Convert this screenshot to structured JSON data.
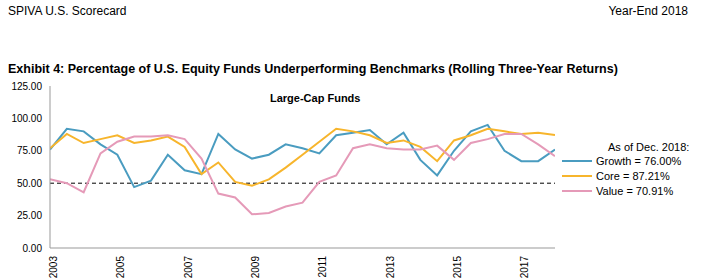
{
  "header": {
    "left": "SPIVA U.S. Scorecard",
    "right": "Year-End 2018"
  },
  "chart_data": {
    "type": "line",
    "title": "Exhibit 4: Percentage of U.S. Equity Funds Underperforming Benchmarks (Rolling Three-Year Returns)",
    "subtitle": "Large-Cap Funds",
    "legend_title": "As of Dec. 2018:",
    "x": [
      2003,
      2003.5,
      2004,
      2004.5,
      2005,
      2005.5,
      2006,
      2006.5,
      2007,
      2007.5,
      2008,
      2008.5,
      2009,
      2009.5,
      2010,
      2010.5,
      2011,
      2011.5,
      2012,
      2012.5,
      2013,
      2013.5,
      2014,
      2014.5,
      2015,
      2015.5,
      2016,
      2016.5,
      2017,
      2017.5,
      2018
    ],
    "xlim": [
      2003,
      2018
    ],
    "xticks": [
      2003,
      2005,
      2007,
      2009,
      2011,
      2013,
      2015,
      2017
    ],
    "ylim": [
      0,
      125
    ],
    "yticks": [
      {
        "value": 0,
        "label": "0.00"
      },
      {
        "value": 25,
        "label": "25.00"
      },
      {
        "value": 50,
        "label": "50.00"
      },
      {
        "value": 75,
        "label": "75.00"
      },
      {
        "value": 100,
        "label": "100.00"
      },
      {
        "value": 125,
        "label": "125.00"
      }
    ],
    "grid": false,
    "reference_line": 50,
    "series": [
      {
        "name": "Growth",
        "legend_text": "= 76.00%",
        "color": "#4a9cc0",
        "values": [
          76,
          92,
          90,
          80,
          72,
          47,
          52,
          72,
          60,
          57,
          88,
          76,
          69,
          72,
          80,
          77,
          73,
          87,
          89,
          91,
          80,
          89,
          68,
          56,
          75,
          90,
          95,
          75,
          67,
          67,
          76.0
        ]
      },
      {
        "name": "Core",
        "legend_text": "= 87.21%",
        "color": "#f7b52c",
        "values": [
          77,
          88,
          81,
          84,
          87,
          81,
          83,
          86,
          78,
          57,
          66,
          51,
          48,
          53,
          62,
          72,
          82,
          92,
          90,
          87,
          81,
          83,
          78,
          67,
          83,
          87,
          92,
          90,
          88,
          89,
          87.21
        ]
      },
      {
        "name": "Value",
        "legend_text": "= 70.91%",
        "color": "#e59ab8",
        "values": [
          53,
          50,
          43,
          73,
          82,
          86,
          86,
          87,
          84,
          69,
          42,
          39,
          26,
          27,
          32,
          35,
          51,
          56,
          77,
          80,
          77,
          76,
          76,
          79,
          68,
          81,
          84,
          88,
          88,
          80,
          70.91
        ]
      }
    ]
  }
}
